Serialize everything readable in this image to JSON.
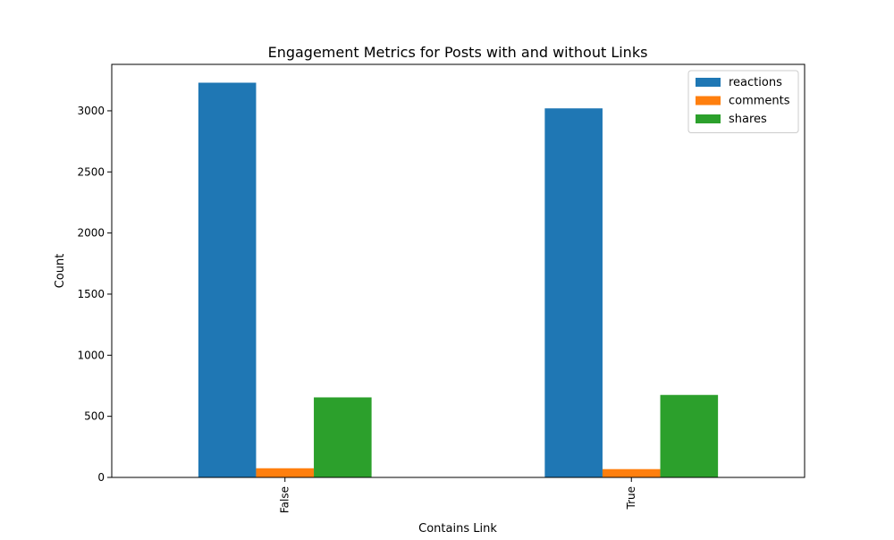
{
  "chart_data": {
    "type": "bar",
    "title": "Engagement Metrics for Posts with and without Links",
    "xlabel": "Contains Link",
    "ylabel": "Count",
    "categories": [
      "False",
      "True"
    ],
    "series": [
      {
        "name": "reactions",
        "color": "#1f77b4",
        "values": [
          3230,
          3020
        ]
      },
      {
        "name": "comments",
        "color": "#ff7f0e",
        "values": [
          75,
          68
        ]
      },
      {
        "name": "shares",
        "color": "#2ca02c",
        "values": [
          655,
          675
        ]
      }
    ],
    "ylim": [
      0,
      3380
    ],
    "yticks": [
      0,
      500,
      1000,
      1500,
      2000,
      2500,
      3000
    ],
    "grid": false,
    "legend_position": "top-right"
  }
}
